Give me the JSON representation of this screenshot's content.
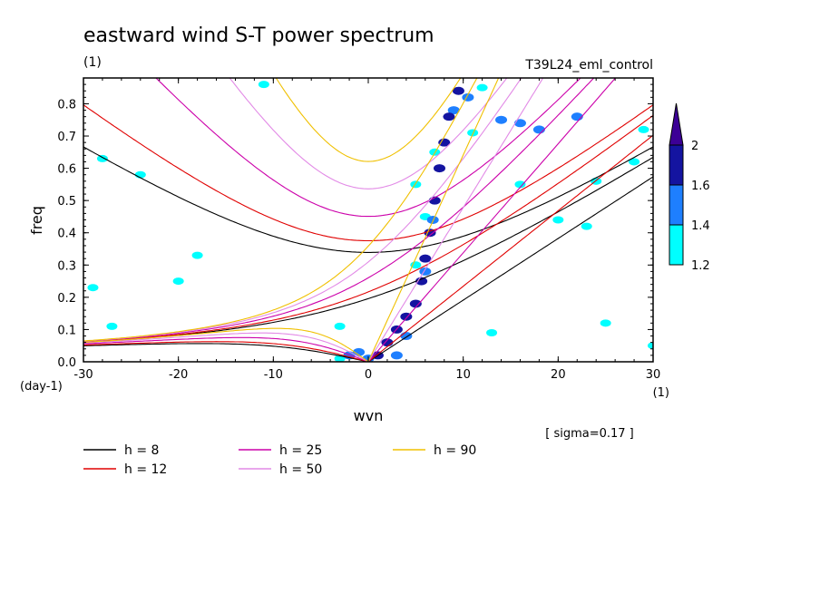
{
  "chart_data": {
    "type": "heatmap",
    "title": "eastward wind S-T power spectrum",
    "subtitle_left": "(1)",
    "subtitle_right": "T39L24_eml_control",
    "xlabel": "wvn",
    "ylabel": "freq",
    "x_unit": "(1)",
    "y_unit": "(day-1)",
    "xlim": [
      -30,
      30
    ],
    "ylim": [
      0,
      0.88
    ],
    "x_ticks": [
      -30,
      -20,
      -10,
      0,
      10,
      20,
      30
    ],
    "y_ticks": [
      0.0,
      0.1,
      0.2,
      0.3,
      0.4,
      0.5,
      0.6,
      0.7,
      0.8
    ],
    "x_tick_labels": [
      "-30",
      "-20",
      "-10",
      "0",
      "10",
      "20",
      "30"
    ],
    "y_tick_labels": [
      "0.0",
      "0.1",
      "0.2",
      "0.3",
      "0.4",
      "0.5",
      "0.6",
      "0.7",
      "0.8"
    ],
    "note": "[ sigma=0.17 ]",
    "colorbar": {
      "levels": [
        1.2,
        1.4,
        1.6,
        2
      ],
      "labels": [
        "1.2",
        "1.4",
        "1.6",
        "2"
      ],
      "colors": [
        "#00ffff",
        "#1e7fff",
        "#1414a0",
        "#3c0096"
      ]
    },
    "dispersion_curves": [
      {
        "name": "h =  8",
        "h": 8,
        "color": "#000000"
      },
      {
        "name": "h = 12",
        "h": 12,
        "color": "#e00000"
      },
      {
        "name": "h = 25",
        "h": 25,
        "color": "#cc00aa"
      },
      {
        "name": "h = 50",
        "h": 50,
        "color": "#e28ae6"
      },
      {
        "name": "h = 90",
        "h": 90,
        "color": "#f0c000"
      }
    ],
    "contour_regions": [
      {
        "level": 1.6,
        "points": [
          [
            1,
            0.02
          ],
          [
            2,
            0.06
          ],
          [
            3,
            0.1
          ],
          [
            4,
            0.14
          ],
          [
            5,
            0.18
          ],
          [
            5.6,
            0.25
          ],
          [
            6,
            0.32
          ],
          [
            6.5,
            0.4
          ],
          [
            7,
            0.5
          ],
          [
            7.5,
            0.6
          ],
          [
            8,
            0.68
          ],
          [
            8.5,
            0.76
          ],
          [
            9.5,
            0.84
          ]
        ]
      },
      {
        "level": 1.4,
        "points": [
          [
            -2,
            0.02
          ],
          [
            -1,
            0.03
          ],
          [
            0,
            0.01
          ],
          [
            3,
            0.02
          ],
          [
            4,
            0.08
          ],
          [
            6,
            0.28
          ],
          [
            6.8,
            0.44
          ],
          [
            9,
            0.78
          ],
          [
            10.5,
            0.82
          ],
          [
            14,
            0.75
          ],
          [
            16,
            0.74
          ],
          [
            18,
            0.72
          ],
          [
            22,
            0.76
          ]
        ]
      },
      {
        "level": 1.2,
        "points": [
          [
            -28,
            0.63
          ],
          [
            -24,
            0.58
          ],
          [
            -20,
            0.25
          ],
          [
            -18,
            0.33
          ],
          [
            -11,
            0.86
          ],
          [
            -3,
            0.01
          ],
          [
            5,
            0.3
          ],
          [
            5,
            0.55
          ],
          [
            6,
            0.45
          ],
          [
            7,
            0.65
          ],
          [
            11,
            0.71
          ],
          [
            12,
            0.85
          ],
          [
            16,
            0.55
          ],
          [
            20,
            0.44
          ],
          [
            24,
            0.56
          ],
          [
            28,
            0.62
          ],
          [
            29,
            0.72
          ],
          [
            -29,
            0.23
          ],
          [
            -27,
            0.11
          ],
          [
            -3,
            0.11
          ],
          [
            13,
            0.09
          ],
          [
            23,
            0.42
          ],
          [
            25,
            0.12
          ],
          [
            30,
            0.05
          ]
        ]
      }
    ]
  },
  "legend": {
    "items": [
      {
        "label": "h =  8",
        "color": "#000000"
      },
      {
        "label": "h = 12",
        "color": "#e00000"
      },
      {
        "label": "h = 25",
        "color": "#cc00aa"
      },
      {
        "label": "h = 50",
        "color": "#e28ae6"
      },
      {
        "label": "h = 90",
        "color": "#f0c000"
      }
    ]
  }
}
